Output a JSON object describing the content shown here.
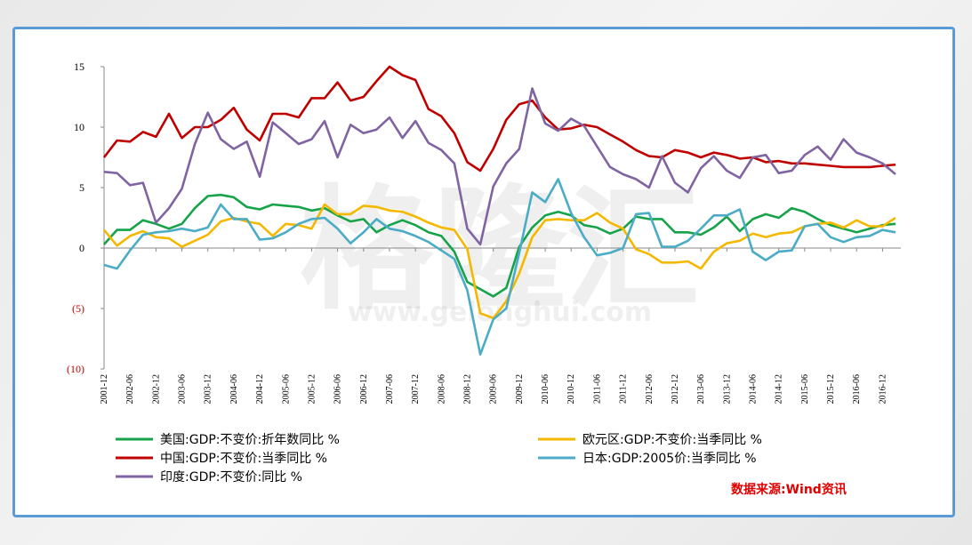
{
  "chart_data": {
    "type": "line",
    "x": [
      "2001-12",
      "2002-03",
      "2002-06",
      "2002-09",
      "2002-12",
      "2003-03",
      "2003-06",
      "2003-09",
      "2003-12",
      "2004-03",
      "2004-06",
      "2004-09",
      "2004-12",
      "2005-03",
      "2005-06",
      "2005-09",
      "2005-12",
      "2006-03",
      "2006-06",
      "2006-09",
      "2006-12",
      "2007-03",
      "2007-06",
      "2007-09",
      "2007-12",
      "2008-03",
      "2008-06",
      "2008-09",
      "2008-12",
      "2009-03",
      "2009-06",
      "2009-09",
      "2009-12",
      "2010-03",
      "2010-06",
      "2010-09",
      "2010-12",
      "2011-03",
      "2011-06",
      "2011-09",
      "2011-12",
      "2012-03",
      "2012-06",
      "2012-09",
      "2012-12",
      "2013-03",
      "2013-06",
      "2013-09",
      "2013-12",
      "2014-03",
      "2014-06",
      "2014-09",
      "2014-12",
      "2015-03",
      "2015-06",
      "2015-09",
      "2015-12",
      "2016-03",
      "2016-06",
      "2016-09",
      "2016-12",
      "2017-03"
    ],
    "x_tick_labels": [
      "2001-12",
      "2002-06",
      "2002-12",
      "2003-06",
      "2003-12",
      "2004-06",
      "2004-12",
      "2005-06",
      "2005-12",
      "2006-06",
      "2006-12",
      "2007-06",
      "2007-12",
      "2008-06",
      "2008-12",
      "2009-06",
      "2009-12",
      "2010-06",
      "2010-12",
      "2011-06",
      "2011-12",
      "2012-06",
      "2012-12",
      "2013-06",
      "2013-12",
      "2014-06",
      "2014-12",
      "2015-06",
      "2015-12",
      "2016-06",
      "2016-12"
    ],
    "y_ticks": [
      "15",
      "10",
      "5",
      "0",
      "(5)",
      "(10)"
    ],
    "y_tick_values": [
      15,
      10,
      5,
      0,
      -5,
      -10
    ],
    "ylim": [
      -10,
      15
    ],
    "grid": false,
    "legend_position": "bottom",
    "series": [
      {
        "name": "美国:GDP:不变价:折年数同比 %",
        "color": "#16a34a",
        "values": [
          0.3,
          1.5,
          1.5,
          2.3,
          2.0,
          1.6,
          2.0,
          3.3,
          4.3,
          4.4,
          4.2,
          3.4,
          3.2,
          3.6,
          3.5,
          3.4,
          3.1,
          3.3,
          2.7,
          2.2,
          2.4,
          1.3,
          1.9,
          2.3,
          1.9,
          1.3,
          1.0,
          -0.3,
          -2.8,
          -3.4,
          -4.0,
          -3.3,
          0.1,
          1.7,
          2.7,
          3.0,
          2.7,
          1.9,
          1.7,
          1.2,
          1.6,
          2.6,
          2.4,
          2.4,
          1.3,
          1.3,
          1.1,
          1.7,
          2.6,
          1.4,
          2.4,
          2.8,
          2.5,
          3.3,
          3.0,
          2.4,
          1.9,
          1.6,
          1.3,
          1.6,
          1.9,
          2.0
        ]
      },
      {
        "name": "欧元区:GDP:不变价:当季同比 %",
        "color": "#f5b800",
        "values": [
          1.5,
          0.2,
          1.0,
          1.4,
          0.9,
          0.8,
          0.1,
          0.6,
          1.1,
          2.2,
          2.5,
          2.2,
          2.0,
          1.0,
          2.0,
          1.9,
          1.6,
          3.6,
          2.8,
          2.8,
          3.5,
          3.4,
          3.1,
          3.0,
          2.6,
          2.1,
          1.7,
          1.5,
          -0.1,
          -5.4,
          -5.8,
          -4.4,
          -2.1,
          0.9,
          2.3,
          2.4,
          2.3,
          2.3,
          2.9,
          2.1,
          1.6,
          -0.1,
          -0.5,
          -1.2,
          -1.2,
          -1.1,
          -1.7,
          -0.3,
          0.4,
          0.6,
          1.2,
          0.9,
          1.2,
          1.3,
          1.8,
          2.0,
          2.1,
          1.7,
          2.3,
          1.8,
          1.8,
          2.5
        ]
      },
      {
        "name": "中国:GDP:不变价:当季同比 %",
        "color": "#c00000",
        "values": [
          7.5,
          8.9,
          8.8,
          9.6,
          9.2,
          11.1,
          9.1,
          10.0,
          10.0,
          10.6,
          11.6,
          9.8,
          8.9,
          11.1,
          11.1,
          10.8,
          12.4,
          12.4,
          13.7,
          12.2,
          12.5,
          13.8,
          15.0,
          14.3,
          13.9,
          11.5,
          10.9,
          9.5,
          7.1,
          6.4,
          8.2,
          10.6,
          11.9,
          12.2,
          10.8,
          9.8,
          9.9,
          10.2,
          10.0,
          9.4,
          8.8,
          8.1,
          7.6,
          7.5,
          8.1,
          7.9,
          7.5,
          7.9,
          7.7,
          7.4,
          7.5,
          7.1,
          7.2,
          7.0,
          7.0,
          6.9,
          6.8,
          6.7,
          6.7,
          6.7,
          6.8,
          6.9
        ]
      },
      {
        "name": "日本:GDP:2005价:当季同比 %",
        "color": "#4bacc6",
        "values": [
          -1.4,
          -1.7,
          -0.2,
          1.1,
          1.3,
          1.4,
          1.6,
          1.4,
          1.7,
          3.6,
          2.4,
          2.4,
          0.7,
          0.8,
          1.3,
          2.0,
          2.4,
          2.5,
          1.6,
          0.4,
          1.3,
          2.4,
          1.6,
          1.4,
          1.0,
          0.5,
          -0.2,
          -0.9,
          -3.5,
          -8.8,
          -5.9,
          -5.0,
          -0.4,
          4.6,
          3.8,
          5.7,
          2.9,
          0.9,
          -0.6,
          -0.4,
          0.0,
          2.8,
          2.9,
          0.1,
          0.1,
          0.6,
          1.6,
          2.7,
          2.7,
          3.2,
          -0.3,
          -1.0,
          -0.3,
          -0.2,
          1.8,
          2.0,
          0.9,
          0.5,
          0.9,
          1.0,
          1.5,
          1.3
        ]
      },
      {
        "name": "印度:GDP:不变价:同比 %",
        "color": "#8064a2",
        "values": [
          6.3,
          6.2,
          5.2,
          5.4,
          2.1,
          3.3,
          4.9,
          8.6,
          11.2,
          9.0,
          8.2,
          8.8,
          5.9,
          10.4,
          9.5,
          8.6,
          9.0,
          10.5,
          7.5,
          10.2,
          9.5,
          9.8,
          10.8,
          9.1,
          10.5,
          8.7,
          8.1,
          7.0,
          1.6,
          0.3,
          5.1,
          7.0,
          8.2,
          13.2,
          10.3,
          9.7,
          10.7,
          10.1,
          8.4,
          6.7,
          6.1,
          5.7,
          5.0,
          7.6,
          5.4,
          4.6,
          6.6,
          7.6,
          6.4,
          5.8,
          7.5,
          7.7,
          6.2,
          6.4,
          7.7,
          8.4,
          7.3,
          9.0,
          7.9,
          7.5,
          7.0,
          6.1
        ]
      }
    ],
    "watermark": "格隆汇",
    "watermark_sub": "www.gelonghui.com"
  },
  "source_text": "数据来源:Wind资讯"
}
